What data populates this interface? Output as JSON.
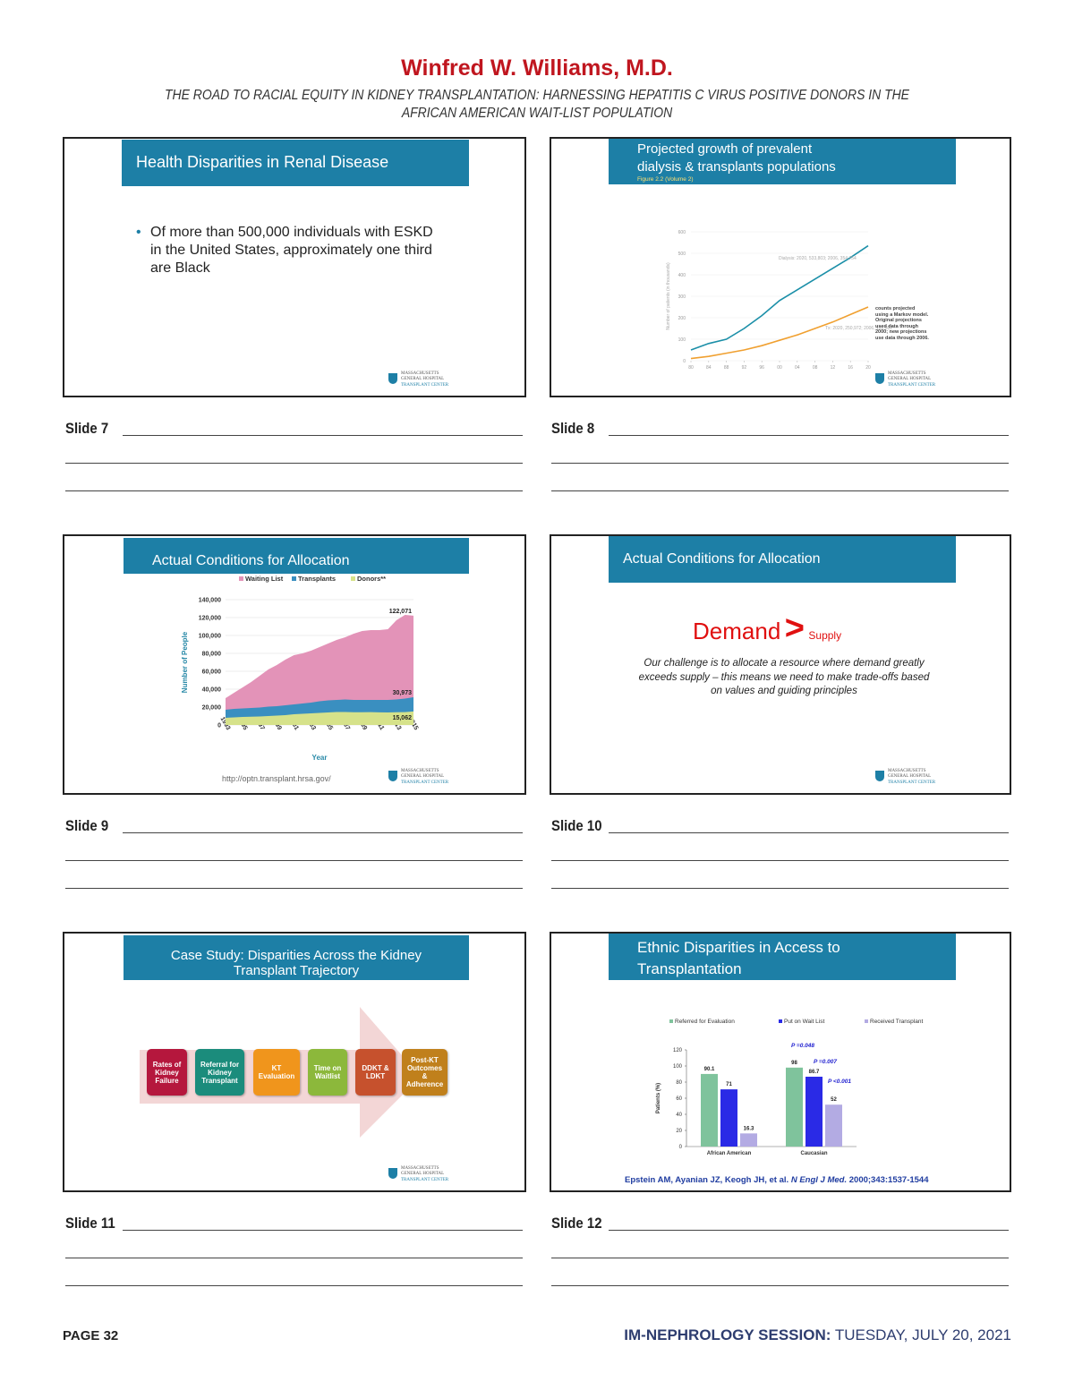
{
  "header": {
    "title": "Winfred W. Williams, M.D.",
    "subtitle_lines": [
      "THE ROAD TO RACIAL EQUITY IN KIDNEY TRANSPLANTATION: HARNESSING HEPATITIS C VIRUS POSITIVE DONORS IN THE",
      "AFRICAN AMERICAN WAIT-LIST POPULATION"
    ]
  },
  "logo": {
    "line1": "MASSACHUSETTS",
    "line2": "GENERAL HOSPITAL",
    "line3": "TRANSPLANT CENTER"
  },
  "slides": [
    {
      "label": "Slide 7",
      "title": "Health Disparities in Renal Disease",
      "bullet": "Of more than 500,000 individuals with ESKD in the United States, approximately one third are Black"
    },
    {
      "label": "Slide 8",
      "title_lines": [
        "Projected growth of prevalent",
        "dialysis & transplants populations"
      ],
      "figure": "Figure 2.2 (Volume 2)",
      "chart": {
        "type": "line",
        "y_label": "Number of patients (in thousands)",
        "x": [
          1980,
          1984,
          1988,
          1992,
          1996,
          2000,
          2004,
          2008,
          2012,
          2016,
          2020
        ],
        "series": [
          {
            "name": "Dialysis",
            "color": "#1b8fa8",
            "values": [
              50,
              80,
              100,
              150,
              210,
              280,
              330,
              380,
              430,
              480,
              535
            ]
          },
          {
            "name": "Transplant",
            "color": "#f0a030",
            "values": [
              10,
              20,
              35,
              50,
              70,
              95,
              120,
              150,
              180,
              215,
              250
            ]
          }
        ],
        "xlim": [
          1980,
          2020
        ],
        "xticks": [
          {
            "value": 1980,
            "label": "80"
          },
          {
            "value": 1984,
            "label": "84"
          },
          {
            "value": 1988,
            "label": "88"
          },
          {
            "value": 1992,
            "label": "92"
          },
          {
            "value": 1996,
            "label": "96"
          },
          {
            "value": 2000,
            "label": "00"
          },
          {
            "value": 2004,
            "label": "04"
          },
          {
            "value": 2008,
            "label": "08"
          },
          {
            "value": 2012,
            "label": "12"
          },
          {
            "value": 2016,
            "label": "16"
          },
          {
            "value": 2020,
            "label": "20"
          }
        ],
        "ylim": [
          0,
          600
        ],
        "yticks": [
          0,
          100,
          200,
          300,
          400,
          500,
          600
        ],
        "annotations": [
          "Dialysis: 2020, 533,803; 2006, 354,754",
          "Tx: 2020, 250,972; 2006, 151,502"
        ],
        "note": "counts projected using a Markov model. Original projections used data through 2000; new projections use data through 2006."
      }
    },
    {
      "label": "Slide 9",
      "title": "Actual Conditions for Allocation",
      "source": "http://optn.transplant.hrsa.gov/",
      "chart": {
        "type": "area",
        "y_label": "Number of People",
        "x_label": "Year",
        "x": [
          1993,
          1994,
          1995,
          1996,
          1997,
          1998,
          1999,
          2000,
          2001,
          2002,
          2003,
          2004,
          2005,
          2006,
          2007,
          2008,
          2009,
          2010,
          2011,
          2012,
          2013,
          2014,
          2015
        ],
        "series": [
          {
            "name": "Waiting List",
            "color": "#e393b8",
            "values": [
              30000,
              36000,
              42000,
              48000,
              55000,
              62000,
              67000,
              73000,
              78000,
              80000,
              83000,
              87000,
              91000,
              95000,
              98000,
              102000,
              105000,
              106000,
              106000,
              107000,
              117000,
              123000,
              122071
            ]
          },
          {
            "name": "Transplants",
            "color": "#3a8fc0",
            "values": [
              17000,
              18000,
              18500,
              19000,
              19500,
              20500,
              21000,
              22000,
              23000,
              24000,
              25000,
              26500,
              27500,
              28000,
              28500,
              28000,
              28000,
              28000,
              28000,
              28000,
              28500,
              29500,
              30973
            ]
          },
          {
            "name": "Donors**",
            "color": "#d6e28a",
            "values": [
              8000,
              8500,
              9000,
              9200,
              9500,
              10000,
              10500,
              11000,
              12000,
              12500,
              13000,
              13500,
              14000,
              14500,
              14500,
              14200,
              14300,
              14400,
              14100,
              14000,
              14200,
              14400,
              15062
            ]
          }
        ],
        "xlim": [
          1993,
          2015
        ],
        "xticks": [
          1993,
          1995,
          1997,
          1999,
          2001,
          2003,
          2005,
          2007,
          2009,
          2011,
          2013,
          2015
        ],
        "ylim": [
          0,
          140000
        ],
        "yticks": [
          0,
          {
            "value": 20000,
            "label": "20,000"
          },
          {
            "value": 40000,
            "label": "40,000"
          },
          {
            "value": 60000,
            "label": "60,000"
          },
          {
            "value": 80000,
            "label": "80,000"
          },
          {
            "value": 100000,
            "label": "100,000"
          },
          {
            "value": 120000,
            "label": "120,000"
          },
          {
            "value": 140000,
            "label": "140,000"
          }
        ],
        "value_labels": [
          "122,071",
          "30,973",
          "15,062"
        ]
      }
    },
    {
      "label": "Slide 10",
      "title": "Actual Conditions for Allocation",
      "demand": "Demand",
      "symbol": ">",
      "supply": "Supply",
      "text": "Our challenge is to allocate a resource where demand greatly exceeds supply – this means we need to make trade-offs based on values and guiding principles"
    },
    {
      "label": "Slide 11",
      "title_lines": [
        "Case Study: Disparities Across the Kidney",
        "Transplant Trajectory"
      ],
      "steps": [
        {
          "text": "Rates of Kidney Failure",
          "color": "#b5173d"
        },
        {
          "text": "Referral for Kidney Transplant",
          "color": "#1b8c7c"
        },
        {
          "text": "KT Evaluation",
          "color": "#f0951c"
        },
        {
          "text": "Time on Waitlist",
          "color": "#8cb83b"
        },
        {
          "text": "DDKT & LDKT",
          "color": "#c6512d"
        },
        {
          "text": "Post-KT Outcomes & Adherence",
          "color": "#c0801c"
        }
      ]
    },
    {
      "label": "Slide 12",
      "title_lines": [
        "Ethnic Disparities in Access to",
        "Transplantation"
      ],
      "citation": {
        "authors": "Epstein AM, Ayanian JZ, Keogh JH, et al.",
        "journal": "N Engl J Med.",
        "ref": "2000;343:1537-1544"
      },
      "chart": {
        "type": "bar",
        "y_label": "Patients (%)",
        "categories": [
          "African American",
          "Caucasian"
        ],
        "series": [
          {
            "name": "Referred for Evaluation",
            "color": "#7fc39c",
            "values": [
              90.1,
              98
            ]
          },
          {
            "name": "Put on Wait List",
            "color": "#2a2ae6",
            "values": [
              71,
              86.7
            ]
          },
          {
            "name": "Received Transplant",
            "color": "#b3abe3",
            "values": [
              16.3,
              52
            ]
          }
        ],
        "ylim": [
          0,
          120
        ],
        "yticks": [
          0,
          20,
          40,
          60,
          80,
          100,
          120
        ],
        "annotations": [
          "P =0.048",
          "P =0.007",
          "P <0.001"
        ]
      }
    }
  ],
  "footer": {
    "page": "PAGE 32",
    "session": "IM-NEPHROLOGY SESSION:",
    "date": "TUESDAY, JULY 20, 2021"
  }
}
